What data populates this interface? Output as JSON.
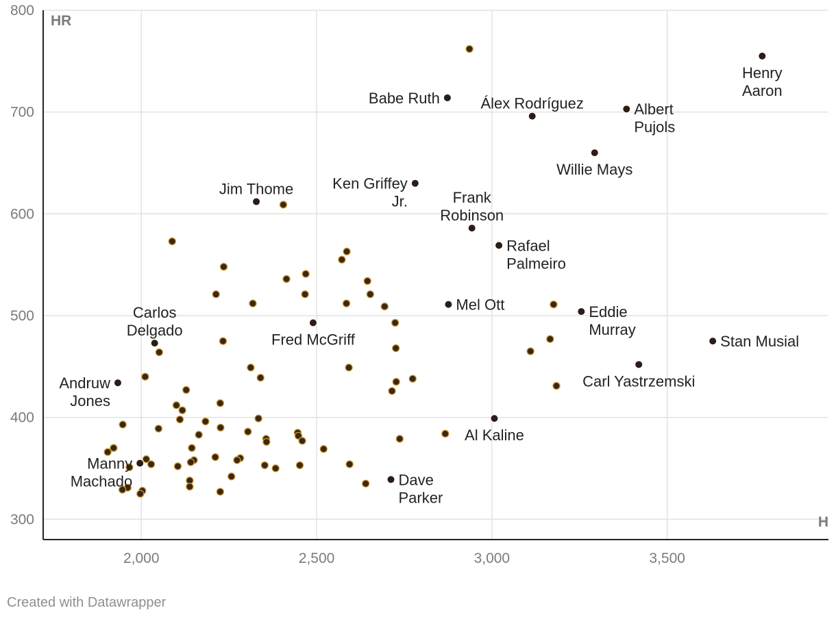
{
  "chart_data": {
    "type": "scatter",
    "xlabel": "H",
    "ylabel": "HR",
    "xlim": [
      1720,
      3960
    ],
    "ylim": [
      280,
      800
    ],
    "x_ticks": [
      2000,
      2500,
      3000,
      3500
    ],
    "x_tick_labels": [
      "2,000",
      "2,500",
      "3,000",
      "3,500"
    ],
    "y_ticks": [
      300,
      400,
      500,
      600,
      700,
      800
    ],
    "y_tick_labels": [
      "300",
      "400",
      "500",
      "600",
      "700",
      "800"
    ],
    "grid": true,
    "colors": {
      "labeled": "#2b1d16",
      "unlabeled": "#3b2713",
      "unlabeled_stroke": "#c8962f",
      "grid": "#e2e2e2",
      "axis": "#222222"
    },
    "labeled_points": [
      {
        "x": 3771,
        "y": 755,
        "label": [
          "Henry",
          "Aaron"
        ],
        "pos": "below"
      },
      {
        "x": 2873,
        "y": 714,
        "label": [
          "Babe Ruth"
        ],
        "pos": "left"
      },
      {
        "x": 3115,
        "y": 696,
        "label": [
          "Álex Rodríguez"
        ],
        "pos": "above"
      },
      {
        "x": 3384,
        "y": 703,
        "label": [
          "Albert",
          "Pujols"
        ],
        "pos": "right"
      },
      {
        "x": 3293,
        "y": 660,
        "label": [
          "Willie Mays"
        ],
        "pos": "below"
      },
      {
        "x": 2328,
        "y": 612,
        "label": [
          "Jim Thome"
        ],
        "pos": "above"
      },
      {
        "x": 2781,
        "y": 630,
        "label": [
          "Ken Griffey",
          "Jr."
        ],
        "pos": "left"
      },
      {
        "x": 2943,
        "y": 586,
        "label": [
          "Frank",
          "Robinson"
        ],
        "pos": "above"
      },
      {
        "x": 3020,
        "y": 569,
        "label": [
          "Rafael",
          "Palmeiro"
        ],
        "pos": "right"
      },
      {
        "x": 2876,
        "y": 511,
        "label": [
          "Mel Ott"
        ],
        "pos": "right"
      },
      {
        "x": 3255,
        "y": 504,
        "label": [
          "Eddie",
          "Murray"
        ],
        "pos": "right"
      },
      {
        "x": 2490,
        "y": 493,
        "label": [
          "Fred McGriff"
        ],
        "pos": "below"
      },
      {
        "x": 2038,
        "y": 473,
        "label": [
          "Carlos",
          "Delgado"
        ],
        "pos": "above"
      },
      {
        "x": 3630,
        "y": 475,
        "label": [
          "Stan Musial"
        ],
        "pos": "right"
      },
      {
        "x": 3419,
        "y": 452,
        "label": [
          "Carl Yastrzemski"
        ],
        "pos": "below"
      },
      {
        "x": 1933,
        "y": 434,
        "label": [
          "Andruw",
          "Jones"
        ],
        "pos": "left"
      },
      {
        "x": 3007,
        "y": 399,
        "label": [
          "Al Kaline"
        ],
        "pos": "below"
      },
      {
        "x": 1996,
        "y": 355,
        "label": [
          "Manny",
          "Machado"
        ],
        "pos": "left"
      },
      {
        "x": 2712,
        "y": 339,
        "label": [
          "Dave",
          "Parker"
        ],
        "pos": "right"
      }
    ],
    "other_points": [
      [
        2936,
        762
      ],
      [
        2405,
        609
      ],
      [
        2088,
        573
      ],
      [
        2235,
        548
      ],
      [
        2586,
        563
      ],
      [
        2572,
        555
      ],
      [
        2469,
        541
      ],
      [
        2414,
        536
      ],
      [
        2645,
        534
      ],
      [
        2213,
        521
      ],
      [
        2467,
        521
      ],
      [
        2653,
        521
      ],
      [
        2318,
        512
      ],
      [
        2585,
        512
      ],
      [
        2694,
        509
      ],
      [
        3176,
        511
      ],
      [
        2724,
        493
      ],
      [
        2233,
        475
      ],
      [
        3166,
        477
      ],
      [
        2726,
        468
      ],
      [
        2051,
        464
      ],
      [
        3110,
        465
      ],
      [
        2312,
        449
      ],
      [
        2592,
        449
      ],
      [
        2011,
        440
      ],
      [
        2340,
        439
      ],
      [
        2774,
        438
      ],
      [
        2727,
        435
      ],
      [
        3184,
        431
      ],
      [
        2715,
        426
      ],
      [
        2128,
        427
      ],
      [
        1947,
        393
      ],
      [
        2100,
        412
      ],
      [
        2225,
        414
      ],
      [
        2117,
        407
      ],
      [
        2110,
        398
      ],
      [
        2183,
        396
      ],
      [
        2334,
        399
      ],
      [
        2226,
        390
      ],
      [
        2049,
        389
      ],
      [
        2164,
        383
      ],
      [
        2446,
        385
      ],
      [
        2304,
        386
      ],
      [
        2867,
        384
      ],
      [
        2448,
        382
      ],
      [
        2356,
        379
      ],
      [
        2737,
        379
      ],
      [
        2459,
        377
      ],
      [
        2357,
        376
      ],
      [
        2144,
        370
      ],
      [
        2520,
        369
      ],
      [
        1921,
        370
      ],
      [
        1904,
        366
      ],
      [
        2014,
        359
      ],
      [
        2211,
        361
      ],
      [
        2150,
        358
      ],
      [
        2141,
        356
      ],
      [
        2282,
        360
      ],
      [
        2273,
        358
      ],
      [
        2028,
        354
      ],
      [
        2104,
        352
      ],
      [
        2352,
        353
      ],
      [
        2452,
        353
      ],
      [
        2383,
        350
      ],
      [
        2594,
        354
      ],
      [
        1966,
        351
      ],
      [
        2257,
        342
      ],
      [
        2138,
        338
      ],
      [
        2640,
        335
      ],
      [
        2138,
        332
      ],
      [
        2003,
        328
      ],
      [
        2225,
        327
      ],
      [
        1997,
        325
      ],
      [
        1961,
        331
      ],
      [
        1946,
        329
      ]
    ]
  },
  "footer": {
    "credit": "Created with Datawrapper"
  }
}
